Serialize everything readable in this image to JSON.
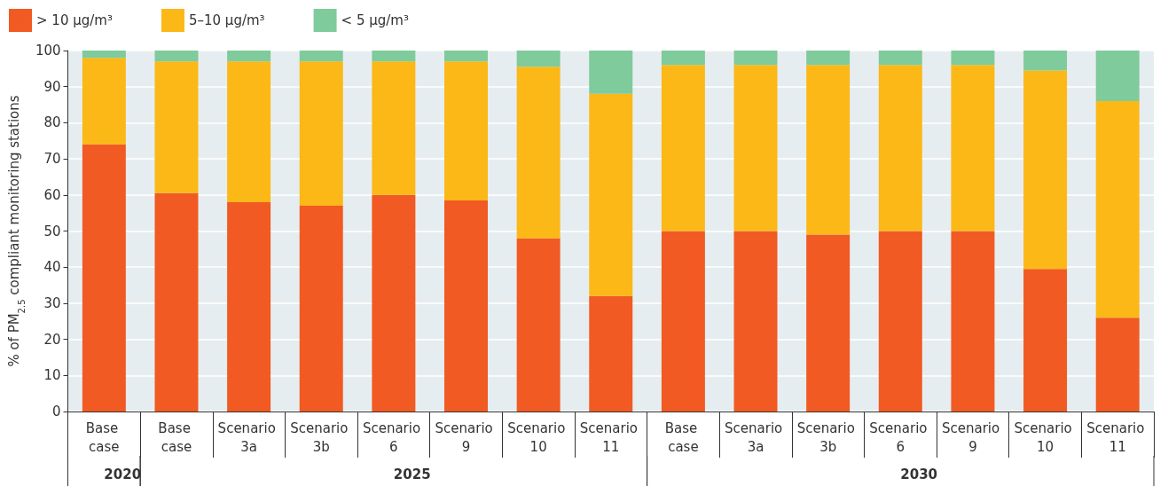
{
  "chart_data": {
    "type": "bar",
    "stacked": true,
    "ylabel": "% of PM$_{2.5}$ compliant monitoring stations",
    "categories": [
      "Base case",
      "Base case",
      "Scenario 3a",
      "Scenario 3b",
      "Scenario 6",
      "Scenario 9",
      "Scenario 10",
      "Scenario 11",
      "Base case",
      "Scenario 3a",
      "Scenario 3b",
      "Scenario 6",
      "Scenario 9",
      "Scenario 10",
      "Scenario 11"
    ],
    "series": [
      {
        "name": "> 10 µg/m³",
        "color": "#f15a22",
        "values": [
          74,
          60.5,
          58,
          57,
          60,
          58.5,
          48,
          32,
          50,
          50,
          49,
          50,
          50,
          39.5,
          26
        ]
      },
      {
        "name": "5–10 µg/m³",
        "color": "#fbb817",
        "values": [
          24,
          36.5,
          39,
          40,
          37,
          38.5,
          47.5,
          56,
          46,
          46,
          47,
          46,
          46,
          55,
          60
        ]
      },
      {
        "name": "< 5 µg/m³",
        "color": "#7fcb9b",
        "values": [
          2,
          3,
          3,
          3,
          3,
          3,
          4.5,
          12,
          4,
          4,
          4,
          4,
          4,
          5.5,
          14
        ]
      }
    ],
    "annotations": [
      "2020",
      "2025",
      "2030"
    ],
    "ylim": [
      0,
      100
    ],
    "yticks": [
      0,
      10,
      20,
      30,
      40,
      50,
      60,
      70,
      80,
      90,
      100
    ],
    "grid": "y",
    "legend": "top left"
  }
}
